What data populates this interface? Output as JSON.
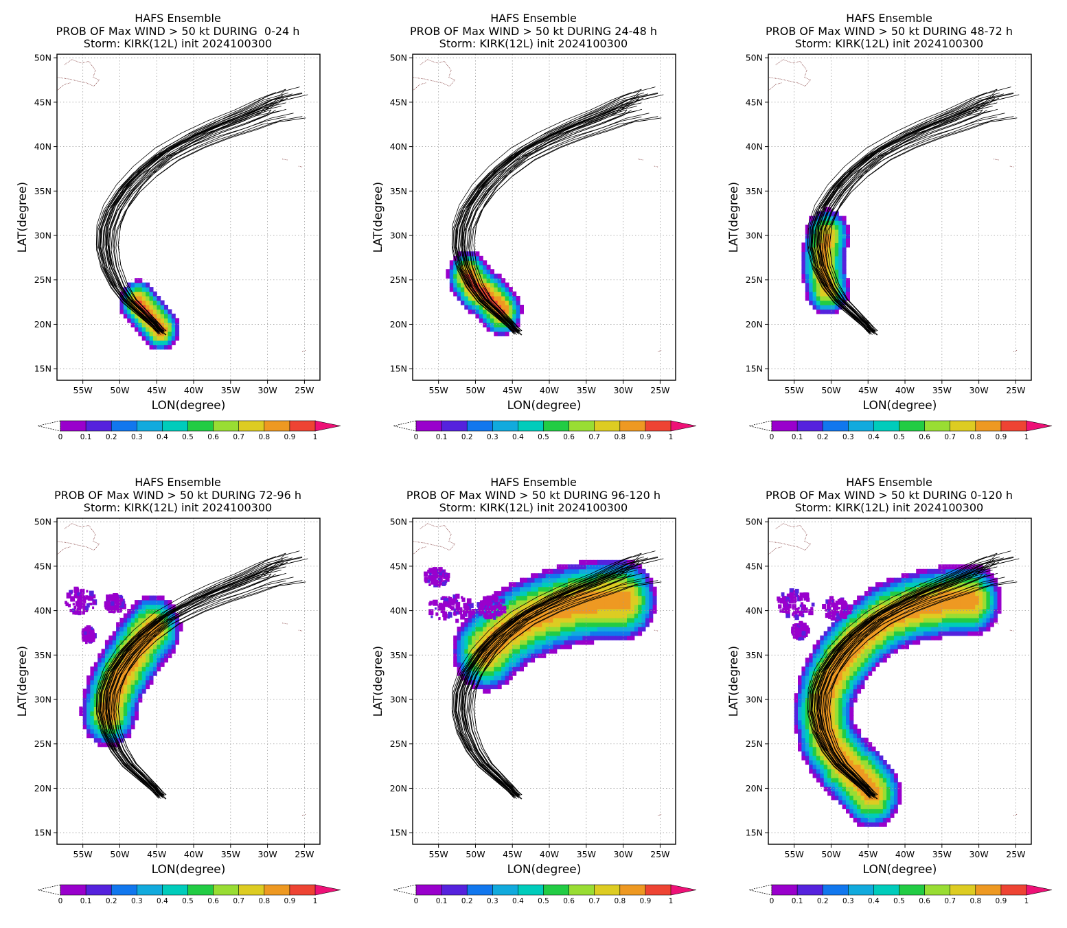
{
  "colors": {
    "scale": [
      "#9900cc",
      "#5522dd",
      "#1177ee",
      "#11aadd",
      "#00ccbb",
      "#22cc44",
      "#99dd33",
      "#ddcc22",
      "#ee9922",
      "#ee4433"
    ],
    "overflow": "#ee1177",
    "coast": "#8b4a4a",
    "grid": "#9a9a9a",
    "track": "#000000"
  },
  "panels": [
    {
      "title": [
        "HAFS Ensemble",
        "PROB OF Max WIND > 50 kt DURING  0-24 h",
        "Storm: KIRK(12L) init 2024100300"
      ],
      "chart_data": {
        "type": "heatmap",
        "xlabel": "LON(degree)",
        "ylabel": "LAT(degree)",
        "xlim": [
          -58.5,
          -22.9
        ],
        "ylim": [
          13.7,
          50.4
        ],
        "xticks": [
          "55W",
          "50W",
          "45W",
          "40W",
          "35W",
          "30W",
          "25W"
        ],
        "yticks": [
          "15N",
          "20N",
          "25N",
          "30N",
          "35N",
          "40N",
          "45N",
          "50N"
        ],
        "grid": true,
        "tracks_visible": true,
        "prob_centerline": [
          [
            -44.5,
            19.5
          ],
          [
            -45.5,
            20.5
          ],
          [
            -46.5,
            21.5
          ],
          [
            -47.5,
            22.5
          ]
        ],
        "prob_halfwidth_deg": 2.5,
        "prob_max": 0.95,
        "noise_regions": [],
        "colorbar": {
          "ticks": [
            "0",
            "0.1",
            "0.2",
            "0.3",
            "0.4",
            "0.5",
            "0.6",
            "0.7",
            "0.8",
            "0.9",
            "1"
          ]
        }
      }
    },
    {
      "title": [
        "HAFS Ensemble",
        "PROB OF Max WIND > 50 kt DURING 24-48 h",
        "Storm: KIRK(12L) init 2024100300"
      ],
      "chart_data": {
        "type": "heatmap",
        "xlabel": "LON(degree)",
        "ylabel": "LAT(degree)",
        "xlim": [
          -58.5,
          -22.9
        ],
        "ylim": [
          13.7,
          50.4
        ],
        "xticks": [
          "55W",
          "50W",
          "45W",
          "40W",
          "35W",
          "30W",
          "25W"
        ],
        "yticks": [
          "15N",
          "20N",
          "25N",
          "30N",
          "35N",
          "40N",
          "45N",
          "50N"
        ],
        "grid": true,
        "tracks_visible": true,
        "prob_centerline": [
          [
            -46.5,
            21.5
          ],
          [
            -47.5,
            22.5
          ],
          [
            -48.5,
            23.3
          ],
          [
            -50.0,
            24.2
          ],
          [
            -51.0,
            25.5
          ]
        ],
        "prob_halfwidth_deg": 2.8,
        "prob_max": 0.95,
        "noise_regions": [],
        "colorbar": {
          "ticks": [
            "0",
            "0.1",
            "0.2",
            "0.3",
            "0.4",
            "0.5",
            "0.6",
            "0.7",
            "0.8",
            "0.9",
            "1"
          ]
        }
      }
    },
    {
      "title": [
        "HAFS Ensemble",
        "PROB OF Max WIND > 50 kt DURING 48-72 h",
        "Storm: KIRK(12L) init 2024100300"
      ],
      "chart_data": {
        "type": "heatmap",
        "xlabel": "LON(degree)",
        "ylabel": "LAT(degree)",
        "xlim": [
          -58.5,
          -22.9
        ],
        "ylim": [
          13.7,
          50.4
        ],
        "xticks": [
          "55W",
          "50W",
          "45W",
          "40W",
          "35W",
          "30W",
          "25W"
        ],
        "yticks": [
          "15N",
          "20N",
          "25N",
          "30N",
          "35N",
          "40N",
          "45N",
          "50N"
        ],
        "grid": true,
        "tracks_visible": true,
        "prob_centerline": [
          [
            -50.5,
            24.0
          ],
          [
            -51.0,
            26.0
          ],
          [
            -51.0,
            28.0
          ],
          [
            -50.5,
            30.0
          ]
        ],
        "prob_halfwidth_deg": 3.0,
        "prob_max": 0.85,
        "noise_regions": [],
        "colorbar": {
          "ticks": [
            "0",
            "0.1",
            "0.2",
            "0.3",
            "0.4",
            "0.5",
            "0.6",
            "0.7",
            "0.8",
            "0.9",
            "1"
          ]
        }
      }
    },
    {
      "title": [
        "HAFS Ensemble",
        "PROB OF Max WIND > 50 kt DURING 72-96 h",
        "Storm: KIRK(12L) init 2024100300"
      ],
      "chart_data": {
        "type": "heatmap",
        "xlabel": "LON(degree)",
        "ylabel": "LAT(degree)",
        "xlim": [
          -58.5,
          -22.9
        ],
        "ylim": [
          13.7,
          50.4
        ],
        "xticks": [
          "55W",
          "50W",
          "45W",
          "40W",
          "35W",
          "30W",
          "25W"
        ],
        "yticks": [
          "15N",
          "20N",
          "25N",
          "30N",
          "35N",
          "40N",
          "45N",
          "50N"
        ],
        "grid": true,
        "tracks_visible": true,
        "prob_centerline": [
          [
            -51.5,
            28.5
          ],
          [
            -51.0,
            30.5
          ],
          [
            -50.0,
            32.5
          ],
          [
            -48.5,
            34.5
          ],
          [
            -47.0,
            36.5
          ],
          [
            -45.5,
            38.0
          ]
        ],
        "prob_halfwidth_deg": 3.8,
        "prob_max": 0.9,
        "noise_regions": [
          [
            -55.5,
            40.8,
            2.2,
            1.4
          ],
          [
            -51.0,
            40.5,
            1.4,
            0.9
          ],
          [
            -54.5,
            37.0,
            0.8,
            0.8
          ]
        ],
        "colorbar": {
          "ticks": [
            "0",
            "0.1",
            "0.2",
            "0.3",
            "0.4",
            "0.5",
            "0.6",
            "0.7",
            "0.8",
            "0.9",
            "1"
          ]
        }
      }
    },
    {
      "title": [
        "HAFS Ensemble",
        "PROB OF Max WIND > 50 kt DURING 96-120 h",
        "Storm: KIRK(12L) init 2024100300"
      ],
      "chart_data": {
        "type": "heatmap",
        "xlabel": "LON(degree)",
        "ylabel": "LAT(degree)",
        "xlim": [
          -58.5,
          -22.9
        ],
        "ylim": [
          13.7,
          50.4
        ],
        "xticks": [
          "55W",
          "50W",
          "45W",
          "40W",
          "35W",
          "30W",
          "25W"
        ],
        "yticks": [
          "15N",
          "20N",
          "25N",
          "30N",
          "35N",
          "40N",
          "45N",
          "50N"
        ],
        "grid": true,
        "tracks_visible": true,
        "prob_centerline": [
          [
            -48.5,
            35.5
          ],
          [
            -46.0,
            37.5
          ],
          [
            -43.0,
            39.0
          ],
          [
            -40.0,
            40.0
          ],
          [
            -36.5,
            40.8
          ],
          [
            -33.0,
            41.2
          ],
          [
            -30.0,
            41.2
          ]
        ],
        "prob_halfwidth_deg": 4.6,
        "prob_max": 0.9,
        "noise_regions": [
          [
            -53.5,
            40.0,
            3.2,
            1.5
          ],
          [
            -55.5,
            43.5,
            1.6,
            1.0
          ],
          [
            -48.0,
            40.0,
            2.0,
            1.2
          ]
        ],
        "colorbar": {
          "ticks": [
            "0",
            "0.1",
            "0.2",
            "0.3",
            "0.4",
            "0.5",
            "0.6",
            "0.7",
            "0.8",
            "0.9",
            "1"
          ]
        }
      }
    },
    {
      "title": [
        "HAFS Ensemble",
        "PROB OF Max WIND > 50 kt DURING 0-120 h",
        "Storm: KIRK(12L) init 2024100300"
      ],
      "chart_data": {
        "type": "heatmap",
        "xlabel": "LON(degree)",
        "ylabel": "LAT(degree)",
        "xlim": [
          -58.5,
          -22.9
        ],
        "ylim": [
          13.7,
          50.4
        ],
        "xticks": [
          "55W",
          "50W",
          "45W",
          "40W",
          "35W",
          "30W",
          "25W"
        ],
        "yticks": [
          "15N",
          "20N",
          "25N",
          "30N",
          "35N",
          "40N",
          "45N",
          "50N"
        ],
        "grid": true,
        "tracks_visible": true,
        "prob_centerline": [
          [
            -44.5,
            19.5
          ],
          [
            -46.0,
            21.0
          ],
          [
            -48.5,
            23.0
          ],
          [
            -50.5,
            25.5
          ],
          [
            -51.2,
            28.5
          ],
          [
            -50.5,
            31.5
          ],
          [
            -48.5,
            34.5
          ],
          [
            -46.0,
            37.0
          ],
          [
            -42.5,
            39.2
          ],
          [
            -39.0,
            40.3
          ],
          [
            -35.0,
            41.0
          ],
          [
            -31.0,
            41.2
          ]
        ],
        "prob_halfwidth_deg": 4.0,
        "prob_max": 0.9,
        "noise_regions": [
          [
            -55.0,
            40.5,
            2.6,
            1.6
          ],
          [
            -49.5,
            40.0,
            1.8,
            1.2
          ],
          [
            -54.5,
            37.5,
            1.0,
            0.9
          ]
        ],
        "colorbar": {
          "ticks": [
            "0",
            "0.1",
            "0.2",
            "0.3",
            "0.4",
            "0.5",
            "0.6",
            "0.7",
            "0.8",
            "0.9",
            "1"
          ]
        }
      }
    }
  ]
}
